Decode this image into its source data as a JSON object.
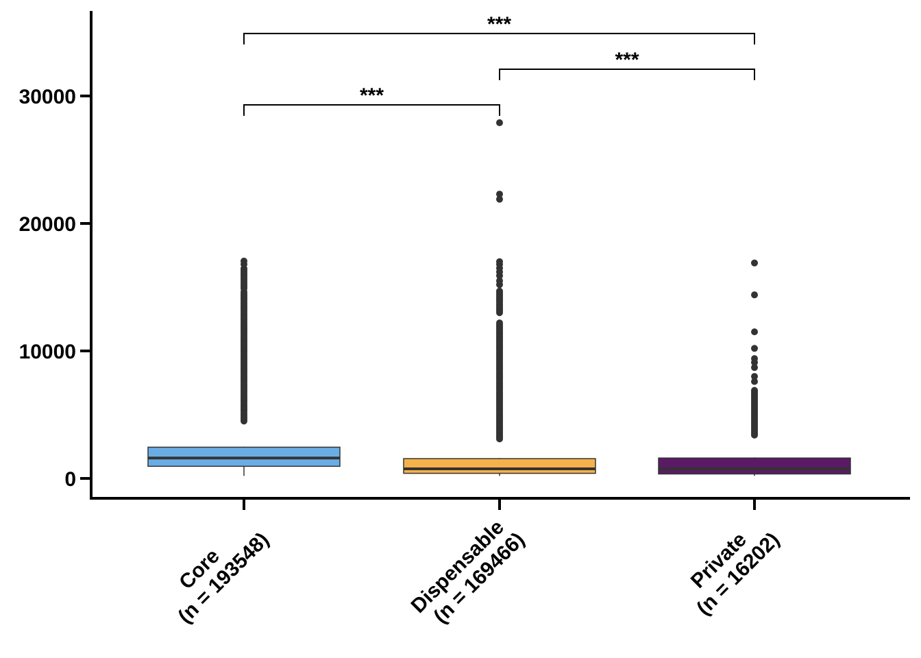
{
  "chart_data": {
    "type": "box",
    "title": "",
    "xlabel": "",
    "ylabel": "",
    "ylim": [
      -1600,
      36500
    ],
    "yticks": [
      0,
      10000,
      20000,
      30000
    ],
    "ytick_labels": [
      "0",
      "10000",
      "20000",
      "30000"
    ],
    "grid": false,
    "legend": "none",
    "categories": [
      {
        "label_line1": "Core",
        "label_line2": "(n = 193548)",
        "color": "#6aade4",
        "median_color": "#333333",
        "whisker_low": 200,
        "q1": 950,
        "median": 1600,
        "q3": 2450,
        "whisker_high": 2500,
        "outlier_ranges": [
          [
            4500,
            14700
          ],
          [
            14900,
            16500
          ]
        ],
        "outliers": [
          16800,
          17050
        ]
      },
      {
        "label_line1": "Dispensable",
        "label_line2": "(n = 169466)",
        "color": "#f6b24a",
        "median_color": "#333333",
        "whisker_low": 200,
        "q1": 400,
        "median": 750,
        "q3": 1550,
        "whisker_high": 1600,
        "outlier_ranges": [
          [
            3100,
            12300
          ],
          [
            13000,
            14800
          ]
        ],
        "outliers": [
          15200,
          15500,
          15900,
          16200,
          16500,
          16800,
          17000,
          21900,
          22300,
          27900
        ]
      },
      {
        "label_line1": "Private",
        "label_line2": "(n = 16202)",
        "color": "#5b1a66",
        "median_color": "#333333",
        "whisker_low": 200,
        "q1": 350,
        "median": 750,
        "q3": 1600,
        "whisker_high": 1650,
        "outlier_ranges": [
          [
            3400,
            7000
          ]
        ],
        "outliers": [
          7600,
          8000,
          8700,
          9100,
          9400,
          10200,
          11500,
          14400,
          16900
        ]
      }
    ],
    "significance": [
      {
        "from": 0,
        "to": 1,
        "y": 29300,
        "label": "***"
      },
      {
        "from": 1,
        "to": 2,
        "y": 32100,
        "label": "***"
      },
      {
        "from": 0,
        "to": 2,
        "y": 34900,
        "label": "***"
      }
    ]
  }
}
